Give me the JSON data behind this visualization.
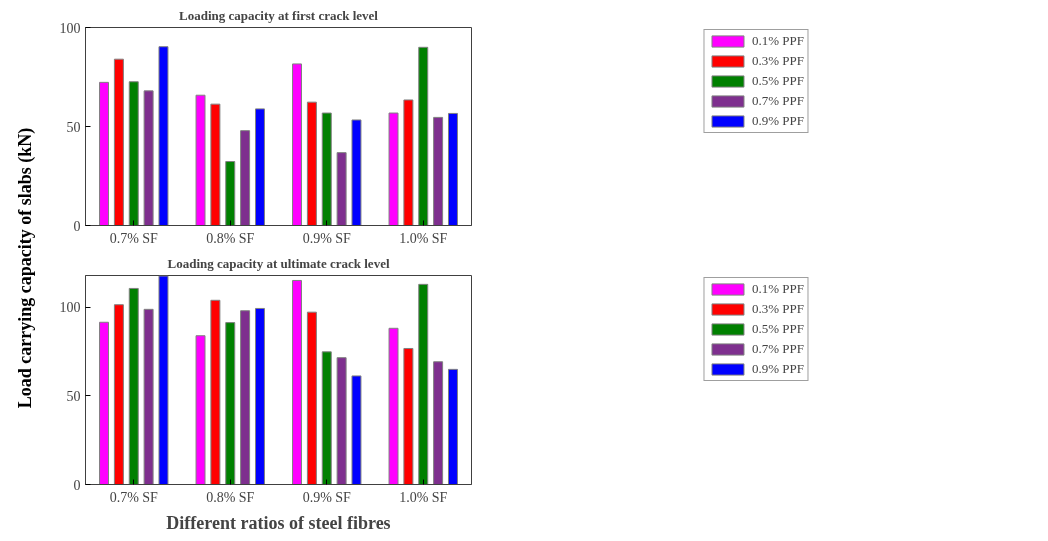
{
  "chart_data": [
    {
      "type": "bar",
      "title": "Loading capacity at first crack level",
      "ylabel": "Load carrying capacity of slabs (kN)",
      "categories": [
        "0.7% SF",
        "0.8% SF",
        "0.9% SF",
        "1.0% SF"
      ],
      "ylim": [
        0,
        100
      ],
      "yticks": [
        0,
        50,
        100
      ],
      "legend": "top right",
      "series": [
        {
          "name": "0.1% PPF",
          "color": "#ff00ff",
          "values": [
            72.3,
            65.8,
            81.6,
            56.8
          ]
        },
        {
          "name": "0.3% PPF",
          "color": "#ff0000",
          "values": [
            84,
            61.3,
            62.3,
            63.4
          ]
        },
        {
          "name": "0.5% PPF",
          "color": "#008000",
          "values": [
            72.6,
            32.3,
            56.8,
            90
          ]
        },
        {
          "name": "0.7% PPF",
          "color": "#7e2f8e",
          "values": [
            68,
            47.9,
            36.8,
            54.6
          ]
        },
        {
          "name": "0.9% PPF",
          "color": "#0000ff",
          "values": [
            90.3,
            58.9,
            53.3,
            56.6
          ]
        }
      ]
    },
    {
      "type": "bar",
      "title": "Loading capacity at ultimate crack level",
      "xlabel": "Different ratios of steel fibres",
      "categories": [
        "0.7% SF",
        "0.8% SF",
        "0.9% SF",
        "1.0% SF"
      ],
      "ylim": [
        0,
        118
      ],
      "yticks": [
        0,
        50,
        100
      ],
      "legend": "top right",
      "series": [
        {
          "name": "0.1% PPF",
          "color": "#ff00ff",
          "values": [
            91.6,
            84,
            115.2,
            88.2
          ]
        },
        {
          "name": "0.3% PPF",
          "color": "#ff0000",
          "values": [
            101.5,
            104,
            97.3,
            76.8
          ]
        },
        {
          "name": "0.5% PPF",
          "color": "#008000",
          "values": [
            110.7,
            91.4,
            74.9,
            113
          ]
        },
        {
          "name": "0.7% PPF",
          "color": "#7e2f8e",
          "values": [
            98.9,
            98.1,
            71.6,
            69.3
          ]
        },
        {
          "name": "0.9% PPF",
          "color": "#0000ff",
          "values": [
            117.7,
            99.4,
            61.3,
            65
          ]
        }
      ]
    }
  ]
}
